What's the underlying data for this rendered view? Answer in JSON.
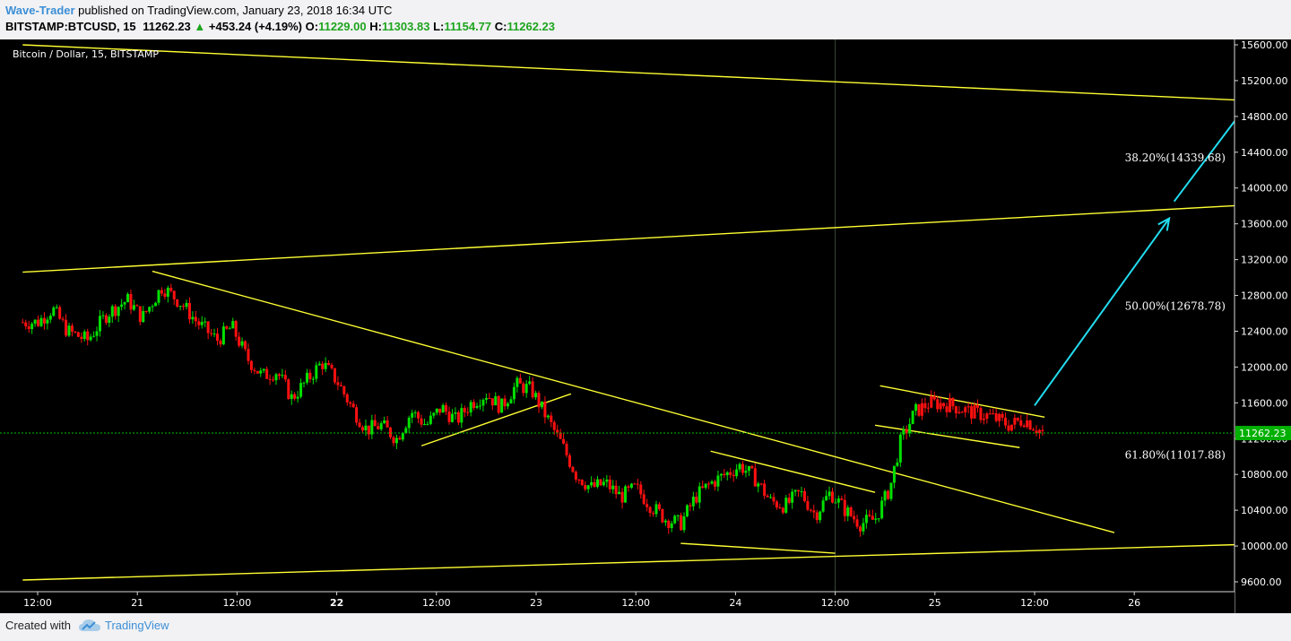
{
  "header": {
    "author": "Wave-Trader",
    "published": " published on TradingView.com, January 23, 2018 16:34 UTC",
    "symbol": "BITSTAMP:BTCUSD, 15",
    "last": "11262.23",
    "change": "+453.24 (+4.19%)",
    "o_label": "O:",
    "o": "11229.00",
    "h_label": "H:",
    "h": "11303.83",
    "l_label": "L:",
    "l": "11154.77",
    "c_label": "C:",
    "c": "11262.23",
    "up_arrow_icon": "triangle-up-icon"
  },
  "footer": {
    "created": "Created with",
    "brand": "TradingView",
    "brand_icon": "tradingview-cloud-icon"
  },
  "colors": {
    "background": "#000000",
    "up": "#00e000",
    "down": "#ff1010",
    "trendline": "#ffff33",
    "arrow": "#22ddf0",
    "last_price": "#00c000",
    "axis_text": "#ffffff",
    "header_green": "#1ea51e",
    "author": "#3c8fd6"
  },
  "chart_data": {
    "type": "candlestick",
    "title": "Bitcoin / Dollar, 15, BITSTAMP",
    "y_ticks": [
      "9600.00",
      "10000.00",
      "10400.00",
      "10800.00",
      "11200.00",
      "11600.00",
      "12000.00",
      "12400.00",
      "12800.00",
      "13200.00",
      "13600.00",
      "14000.00",
      "14400.00",
      "14800.00",
      "15200.00",
      "15600.00"
    ],
    "ylim": [
      9400,
      15760
    ],
    "x_ticks": [
      "12:00",
      "21",
      "12:00",
      "22",
      "12:00",
      "23",
      "12:00",
      "24",
      "12:00",
      "25",
      "12:00",
      "26"
    ],
    "x_tick_bold": [
      "22"
    ],
    "last_price_label": "11262.23",
    "last_price": 11262.23,
    "fibonacci_levels": [
      {
        "label": "38.20%(14339.68)",
        "value": 14339.68
      },
      {
        "label": "50.00%(12678.78)",
        "value": 12678.78
      },
      {
        "label": "61.80%(11017.88)",
        "value": 11017.88
      }
    ],
    "price_path": [
      [
        0,
        12500
      ],
      [
        0.3,
        12650
      ],
      [
        0.6,
        12400
      ],
      [
        1.0,
        12300
      ],
      [
        1.4,
        12600
      ],
      [
        1.8,
        12750
      ],
      [
        2.1,
        12550
      ],
      [
        2.5,
        12900
      ],
      [
        2.9,
        12700
      ],
      [
        3.2,
        12500
      ],
      [
        3.6,
        12300
      ],
      [
        3.9,
        12450
      ],
      [
        4.2,
        12100
      ],
      [
        4.5,
        11900
      ],
      [
        4.8,
        11950
      ],
      [
        5.1,
        11650
      ],
      [
        5.4,
        11850
      ],
      [
        5.7,
        12050
      ],
      [
        6.0,
        11850
      ],
      [
        6.3,
        11550
      ],
      [
        6.6,
        11300
      ],
      [
        6.9,
        11350
      ],
      [
        7.2,
        11200
      ],
      [
        7.5,
        11500
      ],
      [
        7.8,
        11350
      ],
      [
        8.1,
        11550
      ],
      [
        8.4,
        11400
      ],
      [
        8.7,
        11600
      ],
      [
        9.0,
        11700
      ],
      [
        9.3,
        11550
      ],
      [
        9.6,
        11800
      ],
      [
        9.9,
        11750
      ],
      [
        10.2,
        11450
      ],
      [
        10.5,
        11150
      ],
      [
        10.8,
        10800
      ],
      [
        11.1,
        10650
      ],
      [
        11.4,
        10700
      ],
      [
        11.7,
        10550
      ],
      [
        12.0,
        10650
      ],
      [
        12.3,
        10450
      ],
      [
        12.6,
        10300
      ],
      [
        12.9,
        10250
      ],
      [
        13.2,
        10550
      ],
      [
        13.5,
        10700
      ],
      [
        13.8,
        10800
      ],
      [
        14.1,
        10900
      ],
      [
        14.4,
        10750
      ],
      [
        14.7,
        10500
      ],
      [
        15.0,
        10450
      ],
      [
        15.3,
        10600
      ],
      [
        15.6,
        10350
      ],
      [
        15.9,
        10600
      ],
      [
        16.2,
        10400
      ],
      [
        16.5,
        10250
      ],
      [
        16.8,
        10300
      ],
      [
        17.1,
        10650
      ],
      [
        17.3,
        11150
      ],
      [
        17.6,
        11500
      ],
      [
        17.9,
        11600
      ],
      [
        18.3,
        11580
      ],
      [
        18.7,
        11500
      ],
      [
        19.1,
        11450
      ],
      [
        19.5,
        11350
      ],
      [
        19.8,
        11420
      ],
      [
        20.2,
        11250
      ]
    ],
    "drawings": {
      "parallel_channel_lines": [
        [
          [
            -0.3,
            15600
          ],
          [
            30.5,
            14820
          ]
        ],
        [
          [
            -0.3,
            13060
          ],
          [
            30.5,
            14000
          ]
        ],
        [
          [
            -0.3,
            9620
          ],
          [
            30.5,
            10120
          ]
        ]
      ],
      "trendlines": [
        [
          [
            2.3,
            13070
          ],
          [
            21.6,
            10150
          ]
        ],
        [
          [
            7.7,
            11120
          ],
          [
            10.7,
            11700
          ]
        ],
        [
          [
            12.9,
            10030
          ],
          [
            16.0,
            9920
          ]
        ],
        [
          [
            13.5,
            11060
          ],
          [
            16.8,
            10600
          ]
        ],
        [
          [
            16.9,
            11790
          ],
          [
            20.2,
            11440
          ]
        ],
        [
          [
            16.8,
            11350
          ],
          [
            19.7,
            11100
          ]
        ]
      ],
      "arrows": [
        [
          [
            20.0,
            11570
          ],
          [
            22.7,
            13660
          ]
        ],
        [
          [
            22.8,
            13850
          ],
          [
            25.3,
            15700
          ]
        ]
      ]
    }
  }
}
